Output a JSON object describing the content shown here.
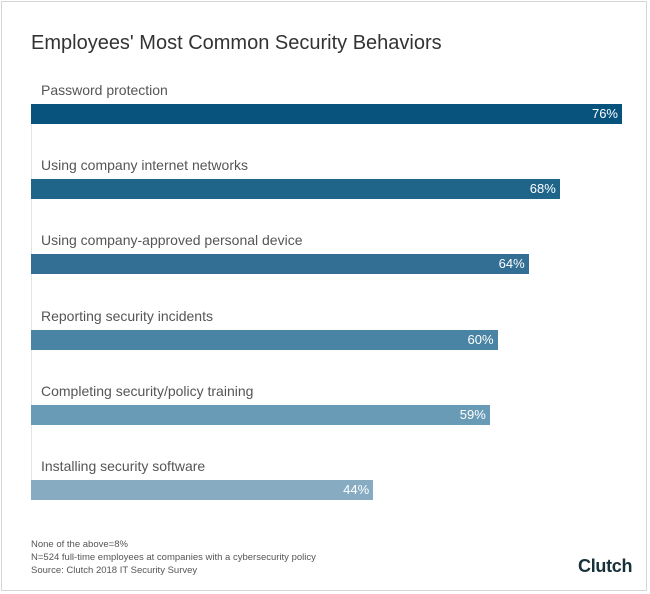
{
  "chart_data": {
    "type": "bar",
    "orientation": "horizontal",
    "title": "Employees' Most Common Security Behaviors",
    "categories": [
      "Password protection",
      "Using company internet networks",
      "Using company-approved personal device",
      "Reporting security incidents",
      "Completing security/policy training",
      "Installing security software"
    ],
    "values": [
      76,
      68,
      64,
      60,
      59,
      44
    ],
    "value_labels": [
      "76%",
      "68%",
      "64%",
      "60%",
      "59%",
      "44%"
    ],
    "colors": [
      "#08527e",
      "#1f6489",
      "#336f94",
      "#4a84a4",
      "#6a9bb6",
      "#87acc2"
    ],
    "xlim": [
      0,
      76
    ],
    "grid": false,
    "legend": "none"
  },
  "footnotes": [
    "None of the above=8%",
    "N=524 full-time employees at companies with a cybersecurity policy",
    "Source: Clutch 2018 IT Security Survey"
  ],
  "logo": "Clutch"
}
